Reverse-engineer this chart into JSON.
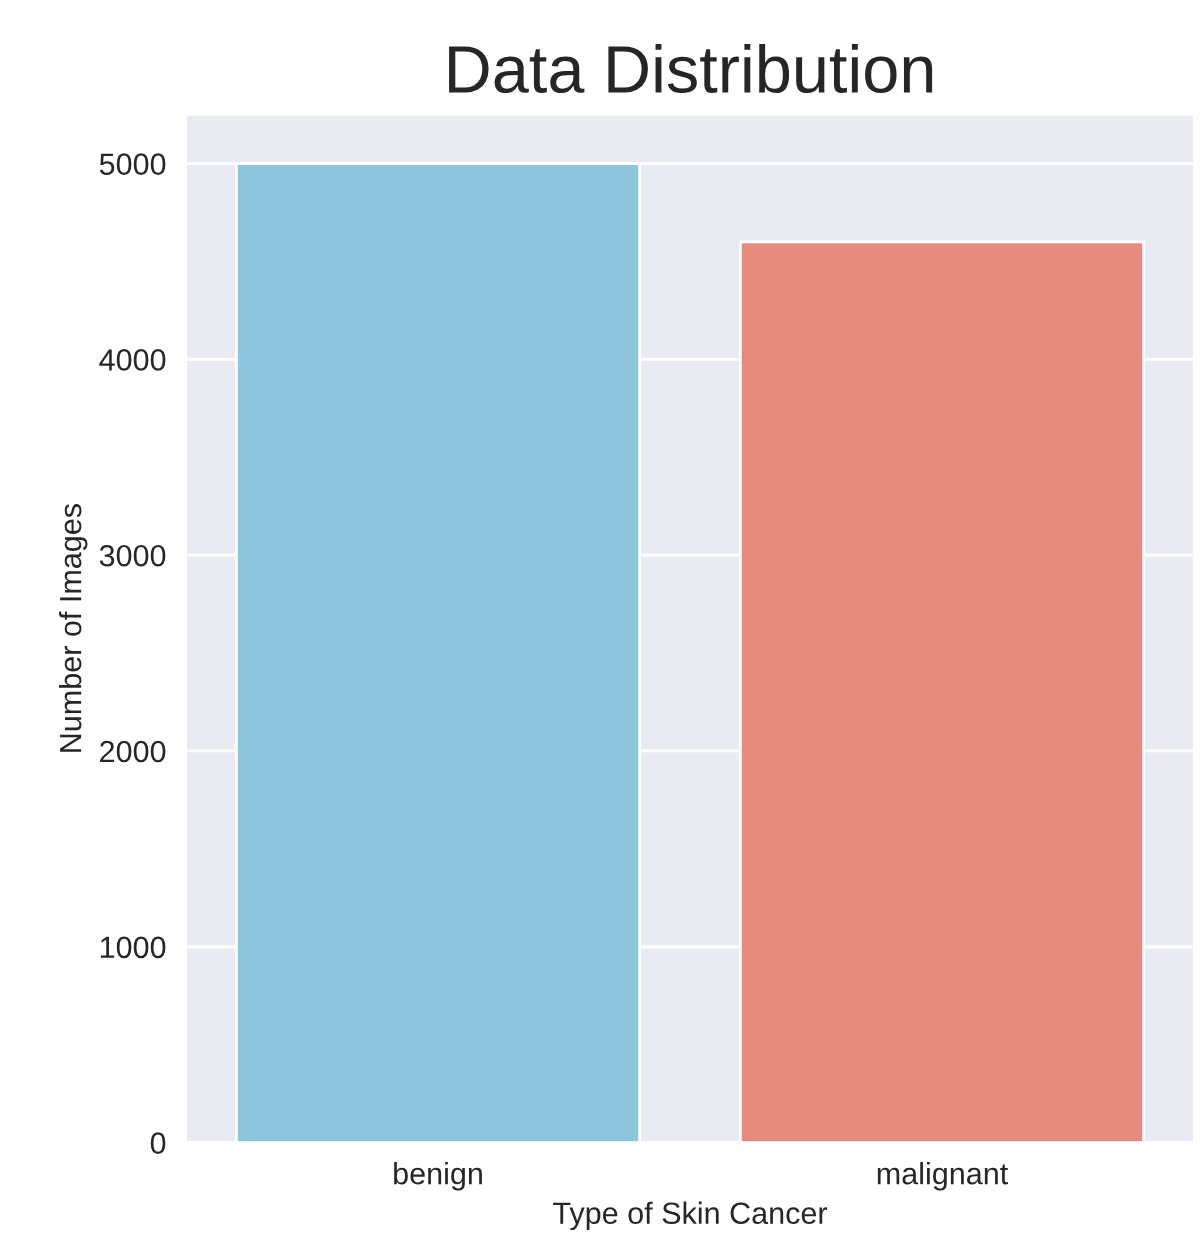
{
  "chart_data": {
    "type": "bar",
    "title": "Data Distribution",
    "xlabel": "Type of Skin Cancer",
    "ylabel": "Number of Images",
    "categories": [
      "benign",
      "malignant"
    ],
    "values": [
      5000,
      4600
    ],
    "colors": [
      "#8ec6de",
      "#e88b7f"
    ],
    "ylim": [
      0,
      5250
    ],
    "yticks": [
      0,
      1000,
      2000,
      3000,
      4000,
      5000
    ],
    "grid": "y",
    "legend": false
  }
}
